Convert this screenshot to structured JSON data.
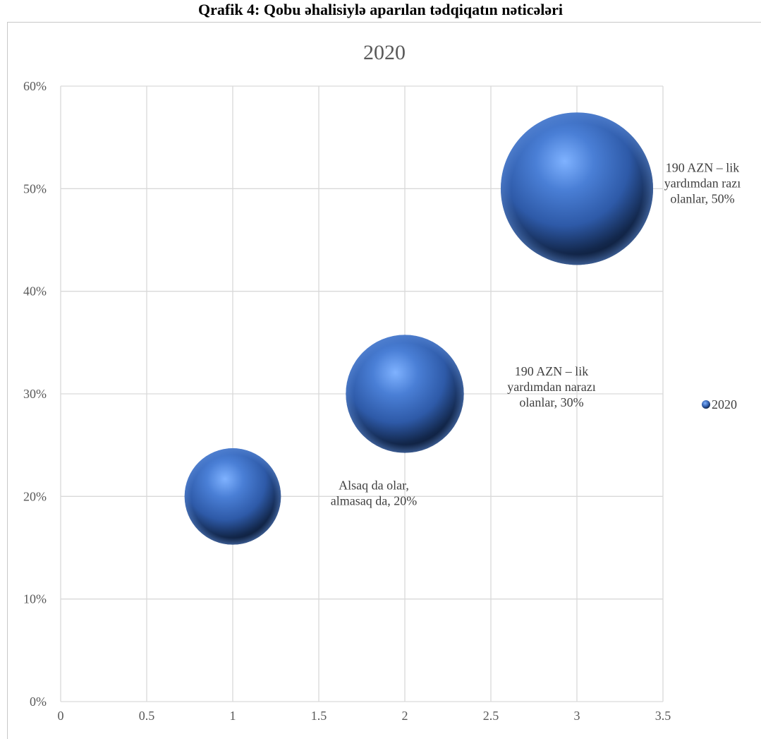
{
  "figure_caption": "Qrafik 4: Qobu əhalisiylə aparılan tədqiqatın nəticələri",
  "chart_data": {
    "type": "scatter",
    "subtype": "bubble",
    "title": "2020",
    "xlabel": "",
    "ylabel": "",
    "xlim": [
      0,
      3.5
    ],
    "ylim": [
      0,
      0.6
    ],
    "x_ticks": [
      "0",
      "0.5",
      "1",
      "1.5",
      "2",
      "2.5",
      "3",
      "3.5"
    ],
    "y_ticks": [
      "0%",
      "10%",
      "20%",
      "30%",
      "40%",
      "50%",
      "60%"
    ],
    "grid": true,
    "legend": {
      "position": "right",
      "entries": [
        "2020"
      ]
    },
    "colors": {
      "bubble": "#4472c4",
      "bubble_light": "#7fb2ff",
      "bubble_dark": "#0c1a33",
      "grid": "#d9d9d9",
      "axis_text": "#595959"
    },
    "series": [
      {
        "name": "2020",
        "points": [
          {
            "x": 1,
            "y": 0.2,
            "size": 20,
            "label": [
              "Alsaq da olar,",
              "almasaq da, 20%"
            ]
          },
          {
            "x": 2,
            "y": 0.3,
            "size": 30,
            "label": [
              "190 AZN – lik",
              "yardımdan narazı",
              "olanlar, 30%"
            ]
          },
          {
            "x": 3,
            "y": 0.5,
            "size": 50,
            "label": [
              "190 AZN – lik",
              "yardımdan razı",
              "olanlar, 50%"
            ]
          }
        ]
      }
    ]
  }
}
